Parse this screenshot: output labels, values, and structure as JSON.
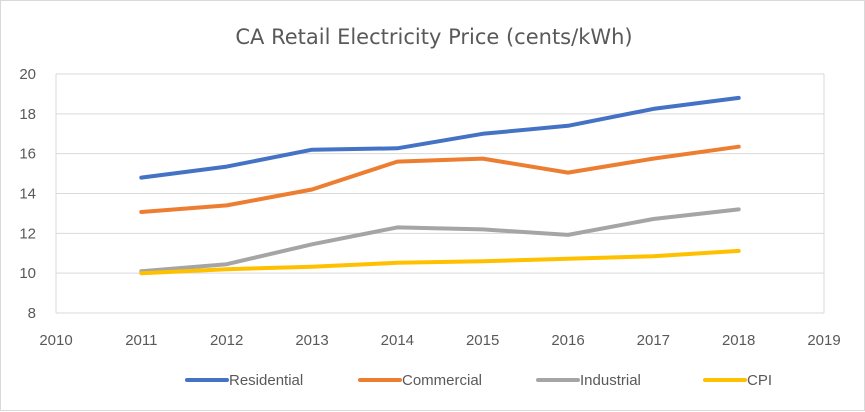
{
  "chart_data": {
    "type": "line",
    "title": "CA Retail Electricity Price (cents/kWh)",
    "xlabel": "",
    "ylabel": "",
    "x": [
      2011,
      2012,
      2013,
      2014,
      2015,
      2016,
      2017,
      2018
    ],
    "xlim": [
      2010,
      2019
    ],
    "xticks": [
      "2010",
      "2011",
      "2012",
      "2013",
      "2014",
      "2015",
      "2016",
      "2017",
      "2018",
      "2019"
    ],
    "ylim": [
      8,
      20
    ],
    "yticks": [
      "8",
      "10",
      "12",
      "14",
      "16",
      "18",
      "20"
    ],
    "grid": true,
    "legend_position": "bottom",
    "series": [
      {
        "name": "Residential",
        "color": "#4472C4",
        "values": [
          14.8,
          15.35,
          16.2,
          16.27,
          17.0,
          17.4,
          18.25,
          18.8
        ]
      },
      {
        "name": "Commercial",
        "color": "#ED7D31",
        "values": [
          13.07,
          13.4,
          14.2,
          15.6,
          15.75,
          15.05,
          15.75,
          16.35
        ]
      },
      {
        "name": "Industrial",
        "color": "#A5A5A5",
        "values": [
          10.1,
          10.45,
          11.45,
          12.3,
          12.2,
          11.92,
          12.72,
          13.2
        ]
      },
      {
        "name": "CPI",
        "color": "#FFC000",
        "values": [
          10.0,
          10.2,
          10.32,
          10.52,
          10.6,
          10.72,
          10.85,
          11.12
        ]
      }
    ]
  }
}
